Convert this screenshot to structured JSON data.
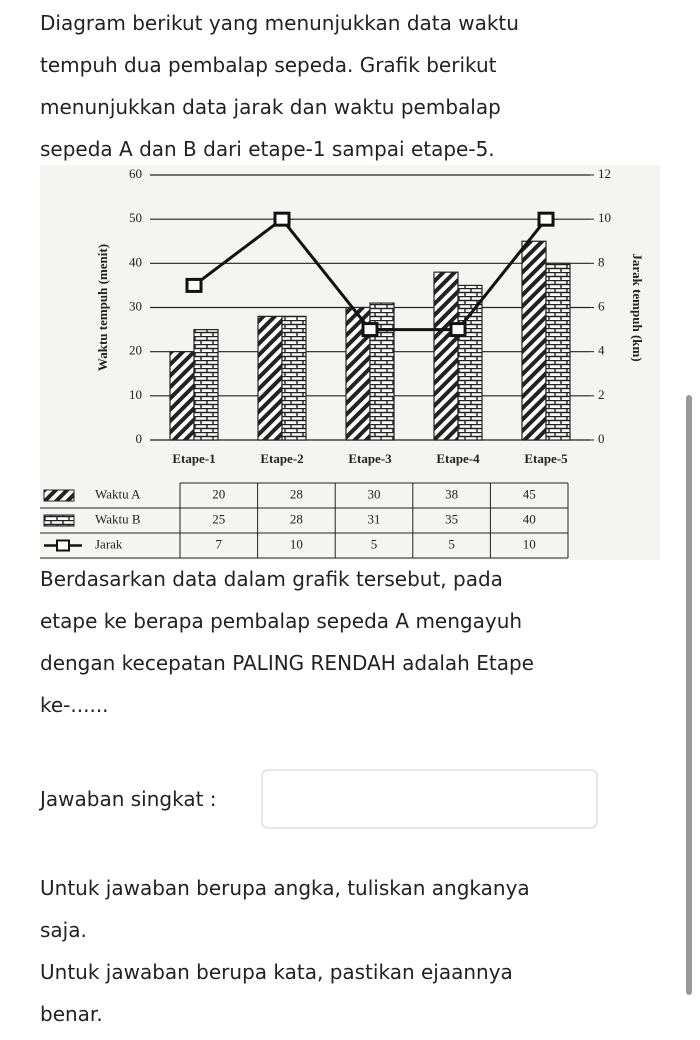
{
  "intro": [
    "Diagram berikut yang menunjukkan data waktu",
    "tempuh dua pembalap sepeda. Grafik berikut",
    "menunjukkan data jarak dan waktu pembalap",
    "sepeda A dan B dari etape-1 sampai etape-5."
  ],
  "chart_data": {
    "type": "bar",
    "categories": [
      "Etape-1",
      "Etape-2",
      "Etape-3",
      "Etape-4",
      "Etape-5"
    ],
    "series": [
      {
        "name": "Waktu A",
        "color": "#222222",
        "pattern": "diagonal",
        "values": [
          20,
          28,
          30,
          38,
          45
        ]
      },
      {
        "name": "Waktu B",
        "color": "#222222",
        "pattern": "brick",
        "values": [
          25,
          28,
          31,
          35,
          40
        ]
      },
      {
        "name": "Jarak",
        "color": "#111111",
        "type": "line",
        "axis": "y2",
        "values": [
          7,
          10,
          5,
          5,
          10
        ]
      }
    ],
    "ylabel": "Waktu tempuh (menit)",
    "y2label": "Jarak tempuh (km)",
    "ylim": [
      0,
      60
    ],
    "yticks": [
      0,
      10,
      20,
      30,
      40,
      50,
      60
    ],
    "y2lim": [
      0,
      12
    ],
    "y2ticks": [
      0,
      2,
      4,
      6,
      8,
      10,
      12
    ],
    "grid": true
  },
  "question": [
    "Berdasarkan data dalam grafik tersebut, pada",
    "etape ke berapa pembalap sepeda A mengayuh",
    "dengan kecepatan PALING RENDAH adalah Etape",
    "ke-......"
  ],
  "answer_label": "Jawaban singkat :",
  "notes": [
    "Untuk jawaban berupa angka, tuliskan angkanya",
    "saja.",
    "Untuk jawaban berupa kata, pastikan ejaannya",
    "benar."
  ]
}
